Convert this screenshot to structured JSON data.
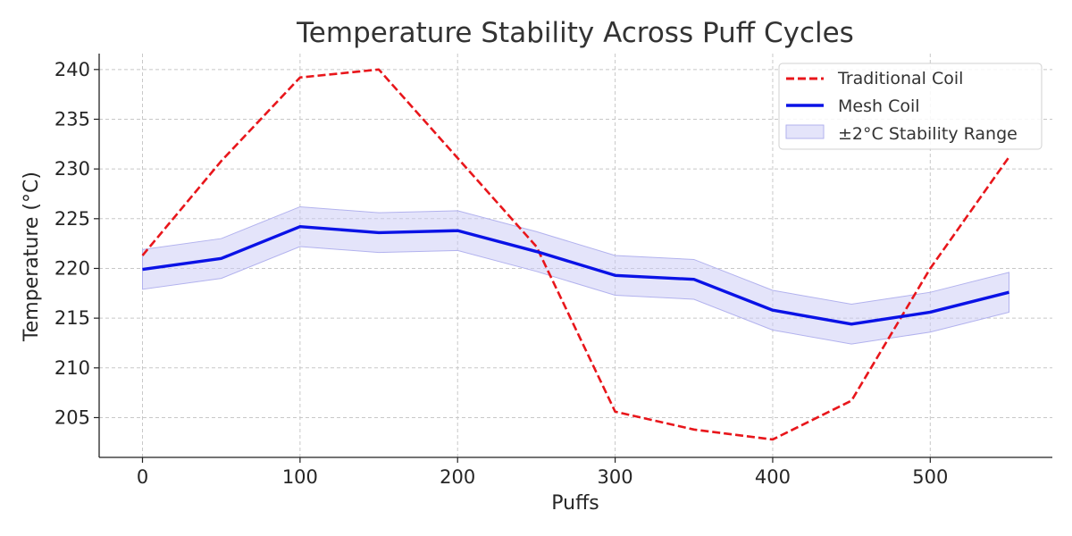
{
  "chart_data": {
    "type": "line",
    "title": "Temperature Stability Across Puff Cycles",
    "xlabel": "Puffs",
    "ylabel": "Temperature (°C)",
    "x": [
      0,
      50,
      100,
      150,
      200,
      250,
      300,
      350,
      400,
      450,
      500,
      550
    ],
    "xlim": [
      -27.5,
      577.5
    ],
    "ylim": [
      201,
      241.6
    ],
    "xticks": [
      0,
      100,
      200,
      300,
      400,
      500
    ],
    "yticks": [
      205,
      210,
      215,
      220,
      225,
      230,
      235,
      240
    ],
    "grid": true,
    "legend_position": "top-right",
    "series": [
      {
        "name": "Traditional Coil",
        "style": "dashed",
        "color": "#e8161b",
        "values": [
          221.3,
          230.8,
          239.2,
          240.0,
          231.1,
          222.2,
          205.6,
          203.8,
          202.8,
          206.7,
          220.0,
          231.2
        ]
      },
      {
        "name": "Mesh Coil",
        "style": "solid",
        "color": "#0a12e6",
        "values": [
          219.9,
          221.0,
          224.2,
          223.6,
          223.8,
          221.7,
          219.3,
          218.9,
          215.8,
          214.4,
          215.6,
          217.6
        ]
      }
    ],
    "band": {
      "name": "±2°C Stability Range",
      "color": "#c9c9f5",
      "edge_color": "#b2b2ee",
      "around_series": "Mesh Coil",
      "offset": 2
    }
  }
}
